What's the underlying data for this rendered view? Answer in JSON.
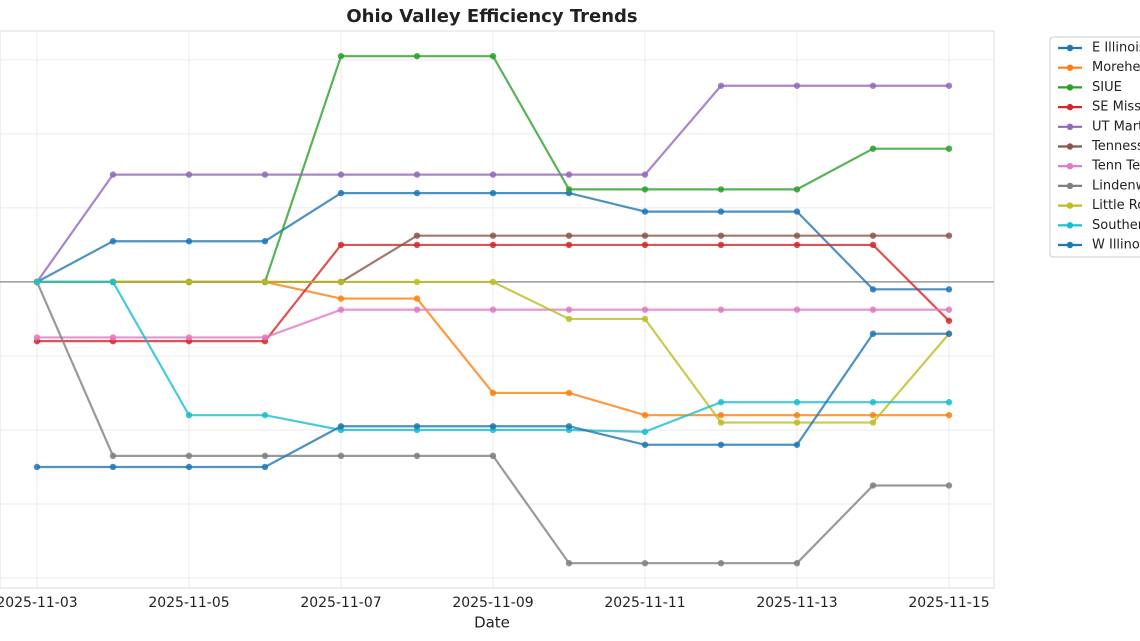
{
  "chart_data": {
    "type": "line",
    "title": "Ohio Valley Efficiency Trends",
    "x_label": "Date",
    "x": [
      "2025-11-03",
      "2025-11-04",
      "2025-11-05",
      "2025-11-06",
      "2025-11-07",
      "2025-11-08",
      "2025-11-09",
      "2025-11-10",
      "2025-11-11",
      "2025-11-12",
      "2025-11-13",
      "2025-11-14",
      "2025-11-15"
    ],
    "xticks": [
      "2025-11-03",
      "2025-11-05",
      "2025-11-07",
      "2025-11-09",
      "2025-11-11",
      "2025-11-13",
      "2025-11-15"
    ],
    "ylim": [
      -8.27,
      6.78
    ],
    "yticks": [
      -8,
      -6,
      -4,
      -2,
      0,
      2,
      4,
      6
    ],
    "grid": true,
    "reference_line": 0,
    "legend": "outside-right",
    "series": [
      {
        "name": "E Illinois",
        "color": "#1f77b4",
        "values": [
          0,
          1.1,
          1.1,
          1.1,
          2.4,
          2.4,
          2.4,
          2.4,
          1.9,
          1.9,
          1.9,
          -0.2,
          -0.2
        ]
      },
      {
        "name": "Morehead St",
        "color": "#ff7f0e",
        "values": [
          0,
          0,
          0,
          0,
          -0.45,
          -0.45,
          -3.0,
          -3.0,
          -3.6,
          -3.6,
          -3.6,
          -3.6,
          -3.6
        ]
      },
      {
        "name": "SIUE",
        "color": "#2ca02c",
        "values": [
          0,
          0,
          0,
          0,
          6.1,
          6.1,
          6.1,
          2.5,
          2.5,
          2.5,
          2.5,
          3.6,
          3.6
        ]
      },
      {
        "name": "SE Missouri St",
        "color": "#d62728",
        "values": [
          -1.6,
          -1.6,
          -1.6,
          -1.6,
          1.0,
          1.0,
          1.0,
          1.0,
          1.0,
          1.0,
          1.0,
          1.0,
          -1.05
        ]
      },
      {
        "name": "UT Martin",
        "color": "#9467bd",
        "values": [
          0,
          2.9,
          2.9,
          2.9,
          2.9,
          2.9,
          2.9,
          2.9,
          2.9,
          5.3,
          5.3,
          5.3,
          5.3
        ]
      },
      {
        "name": "Tennessee St",
        "color": "#8c564b",
        "values": [
          0,
          0,
          0,
          0,
          0,
          1.25,
          1.25,
          1.25,
          1.25,
          1.25,
          1.25,
          1.25,
          1.25
        ]
      },
      {
        "name": "Tenn Tech",
        "color": "#e377c2",
        "values": [
          -1.5,
          -1.5,
          -1.5,
          -1.5,
          -0.75,
          -0.75,
          -0.75,
          -0.75,
          -0.75,
          -0.75,
          -0.75,
          -0.75,
          -0.75
        ]
      },
      {
        "name": "Lindenwood",
        "color": "#7f7f7f",
        "values": [
          0,
          -4.7,
          -4.7,
          -4.7,
          -4.7,
          -4.7,
          -4.7,
          -7.6,
          -7.6,
          -7.6,
          -7.6,
          -5.5,
          -5.5
        ]
      },
      {
        "name": "Little Rock",
        "color": "#bcbd22",
        "values": [
          0,
          0,
          0,
          0,
          0,
          0,
          0,
          -1.0,
          -1.0,
          -3.8,
          -3.8,
          -3.8,
          -1.4
        ]
      },
      {
        "name": "Southern Indiana",
        "color": "#17becf",
        "values": [
          0,
          0,
          -3.6,
          -3.6,
          -4.0,
          -4.0,
          -4.0,
          -4.0,
          -4.05,
          -3.25,
          -3.25,
          -3.25,
          -3.25
        ]
      },
      {
        "name": "W Illinois",
        "color": "#1f77b4",
        "values": [
          -5.0,
          -5.0,
          -5.0,
          -5.0,
          -3.9,
          -3.9,
          -3.9,
          -3.9,
          -4.4,
          -4.4,
          -4.4,
          -1.4,
          -1.4
        ]
      }
    ]
  }
}
